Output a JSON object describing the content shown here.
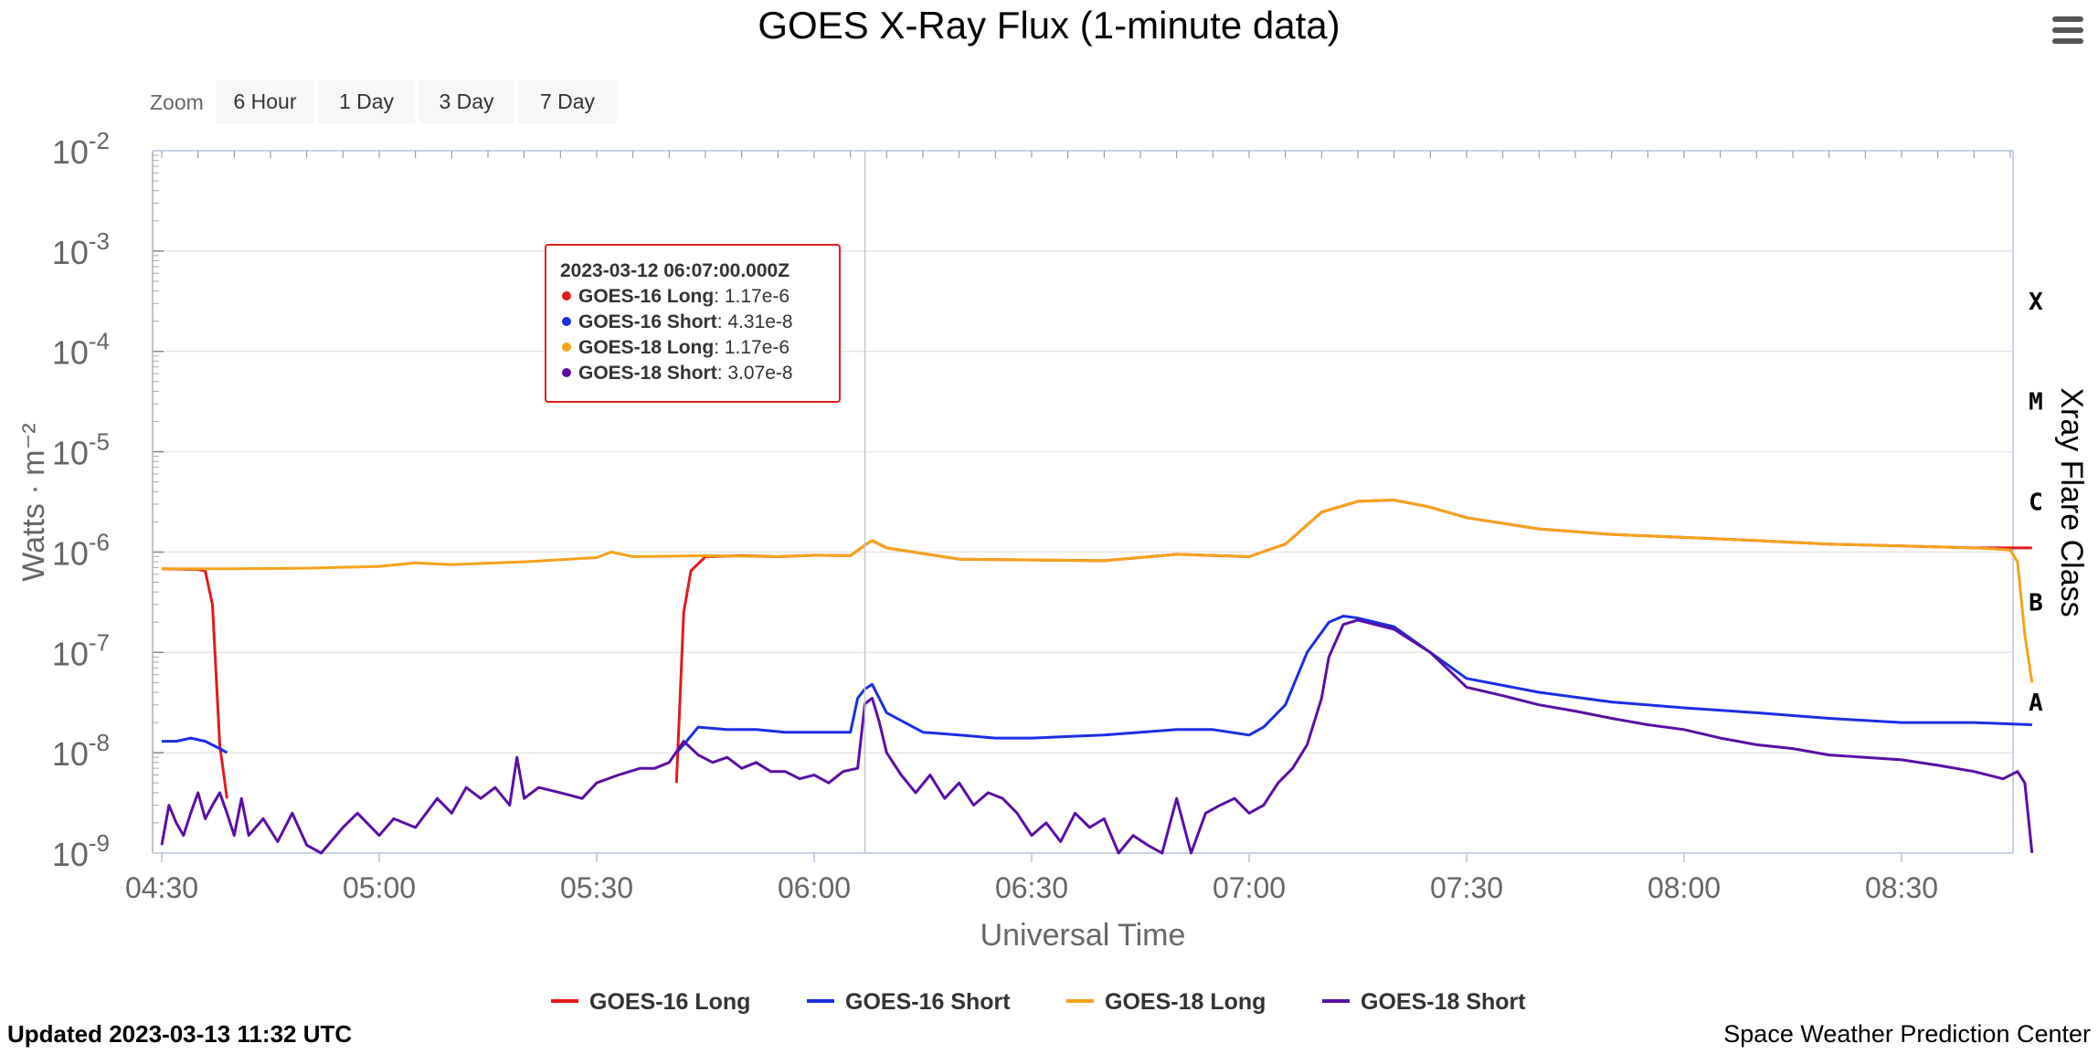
{
  "title": "GOES X-Ray Flux (1-minute data)",
  "zoom": {
    "label": "Zoom",
    "buttons": [
      "6 Hour",
      "1 Day",
      "3 Day",
      "7 Day"
    ]
  },
  "footer": {
    "updated": "Updated 2023-03-13 11:32 UTC",
    "credit": "Space Weather Prediction Center"
  },
  "icons": {
    "menu": "hamburger-menu-icon"
  },
  "tooltip": {
    "time": "2023-03-12 06:07:00.000Z",
    "rows": [
      {
        "name": "GOES-16 Long",
        "value": "1.17e-6"
      },
      {
        "name": "GOES-16 Short",
        "value": "4.31e-8"
      },
      {
        "name": "GOES-18 Long",
        "value": "1.17e-6"
      },
      {
        "name": "GOES-18 Short",
        "value": "3.07e-8"
      }
    ]
  },
  "chart_data": {
    "type": "line",
    "title": "GOES X-Ray Flux (1-minute data)",
    "xlabel": "Universal Time",
    "ylabel": "Watts · m⁻²",
    "y2label": "Xray Flare Class",
    "yscale": "log",
    "ylim": [
      1e-09,
      0.01
    ],
    "xlim": [
      "04:30",
      "08:48"
    ],
    "x_ticks": [
      "04:30",
      "05:00",
      "05:30",
      "06:00",
      "06:30",
      "07:00",
      "07:30",
      "08:00",
      "08:30"
    ],
    "y_ticks": [
      {
        "base": "10",
        "exp": "-2"
      },
      {
        "base": "10",
        "exp": "-3"
      },
      {
        "base": "10",
        "exp": "-4"
      },
      {
        "base": "10",
        "exp": "-5"
      },
      {
        "base": "10",
        "exp": "-6"
      },
      {
        "base": "10",
        "exp": "-7"
      },
      {
        "base": "10",
        "exp": "-8"
      },
      {
        "base": "10",
        "exp": "-9"
      }
    ],
    "flare_classes": [
      {
        "label": "X",
        "flux": 0.0001
      },
      {
        "label": "M",
        "flux": 1e-05
      },
      {
        "label": "C",
        "flux": 1e-06
      },
      {
        "label": "B",
        "flux": 1e-07
      },
      {
        "label": "A",
        "flux": 1e-08
      }
    ],
    "crosshair_time": "06:07",
    "grid": true,
    "legend": "bottom",
    "series": [
      {
        "name": "GOES-16 Long",
        "color": "#e31a1c",
        "points": [
          [
            "04:30",
            6.8e-07
          ],
          [
            "04:35",
            6.7e-07
          ],
          [
            "04:36",
            6.5e-07
          ],
          [
            "04:37",
            3e-07
          ],
          [
            "04:38",
            1.2e-08
          ],
          [
            "04:39",
            3.5e-09
          ],
          null,
          [
            "05:41",
            5e-09
          ],
          [
            "05:42",
            2.5e-07
          ],
          [
            "05:43",
            6.5e-07
          ],
          [
            "05:45",
            9e-07
          ],
          [
            "05:50",
            9.2e-07
          ],
          [
            "05:55",
            9e-07
          ],
          [
            "06:00",
            9.3e-07
          ],
          [
            "06:05",
            9.2e-07
          ],
          [
            "06:07",
            1.17e-06
          ],
          [
            "06:08",
            1.3e-06
          ],
          [
            "06:10",
            1.1e-06
          ],
          [
            "06:20",
            8.5e-07
          ],
          [
            "06:40",
            8.2e-07
          ],
          [
            "06:50",
            9.5e-07
          ],
          [
            "07:00",
            9e-07
          ],
          [
            "07:05",
            1.2e-06
          ],
          [
            "07:10",
            2.5e-06
          ],
          [
            "07:15",
            3.2e-06
          ],
          [
            "07:20",
            3.3e-06
          ],
          [
            "07:25",
            2.8e-06
          ],
          [
            "07:30",
            2.2e-06
          ],
          [
            "07:40",
            1.7e-06
          ],
          [
            "07:50",
            1.5e-06
          ],
          [
            "08:00",
            1.4e-06
          ],
          [
            "08:10",
            1.3e-06
          ],
          [
            "08:20",
            1.2e-06
          ],
          [
            "08:30",
            1.15e-06
          ],
          [
            "08:40",
            1.1e-06
          ],
          [
            "08:48",
            1.1e-06
          ]
        ]
      },
      {
        "name": "GOES-16 Short",
        "color": "#1a2ee3",
        "points": [
          [
            "04:30",
            1.3e-08
          ],
          [
            "04:32",
            1.3e-08
          ],
          [
            "04:34",
            1.4e-08
          ],
          [
            "04:36",
            1.3e-08
          ],
          [
            "04:38",
            1.1e-08
          ],
          [
            "04:39",
            1e-08
          ],
          null,
          [
            "05:41",
            1e-08
          ],
          [
            "05:42",
            1.2e-08
          ],
          [
            "05:44",
            1.8e-08
          ],
          [
            "05:48",
            1.7e-08
          ],
          [
            "05:52",
            1.7e-08
          ],
          [
            "05:56",
            1.6e-08
          ],
          [
            "06:00",
            1.6e-08
          ],
          [
            "06:05",
            1.6e-08
          ],
          [
            "06:06",
            3.5e-08
          ],
          [
            "06:07",
            4.31e-08
          ],
          [
            "06:08",
            4.8e-08
          ],
          [
            "06:10",
            2.5e-08
          ],
          [
            "06:15",
            1.6e-08
          ],
          [
            "06:20",
            1.5e-08
          ],
          [
            "06:25",
            1.4e-08
          ],
          [
            "06:30",
            1.4e-08
          ],
          [
            "06:35",
            1.45e-08
          ],
          [
            "06:40",
            1.5e-08
          ],
          [
            "06:45",
            1.6e-08
          ],
          [
            "06:50",
            1.7e-08
          ],
          [
            "06:55",
            1.7e-08
          ],
          [
            "07:00",
            1.5e-08
          ],
          [
            "07:02",
            1.8e-08
          ],
          [
            "07:05",
            3e-08
          ],
          [
            "07:08",
            1e-07
          ],
          [
            "07:11",
            2e-07
          ],
          [
            "07:13",
            2.3e-07
          ],
          [
            "07:15",
            2.2e-07
          ],
          [
            "07:20",
            1.8e-07
          ],
          [
            "07:25",
            1e-07
          ],
          [
            "07:30",
            5.5e-08
          ],
          [
            "07:40",
            4e-08
          ],
          [
            "07:50",
            3.2e-08
          ],
          [
            "08:00",
            2.8e-08
          ],
          [
            "08:10",
            2.5e-08
          ],
          [
            "08:20",
            2.2e-08
          ],
          [
            "08:30",
            2e-08
          ],
          [
            "08:40",
            2e-08
          ],
          [
            "08:48",
            1.9e-08
          ]
        ]
      },
      {
        "name": "GOES-18 Long",
        "color": "#f5a31a",
        "points": [
          [
            "04:30",
            6.8e-07
          ],
          [
            "04:40",
            6.8e-07
          ],
          [
            "04:50",
            6.9e-07
          ],
          [
            "05:00",
            7.2e-07
          ],
          [
            "05:05",
            7.8e-07
          ],
          [
            "05:10",
            7.5e-07
          ],
          [
            "05:20",
            8e-07
          ],
          [
            "05:30",
            8.8e-07
          ],
          [
            "05:32",
            1e-06
          ],
          [
            "05:35",
            9e-07
          ],
          [
            "05:45",
            9.2e-07
          ],
          [
            "05:55",
            9e-07
          ],
          [
            "06:00",
            9.3e-07
          ],
          [
            "06:05",
            9.2e-07
          ],
          [
            "06:07",
            1.17e-06
          ],
          [
            "06:08",
            1.3e-06
          ],
          [
            "06:10",
            1.1e-06
          ],
          [
            "06:20",
            8.5e-07
          ],
          [
            "06:40",
            8.2e-07
          ],
          [
            "06:50",
            9.5e-07
          ],
          [
            "07:00",
            9e-07
          ],
          [
            "07:05",
            1.2e-06
          ],
          [
            "07:10",
            2.5e-06
          ],
          [
            "07:15",
            3.2e-06
          ],
          [
            "07:20",
            3.3e-06
          ],
          [
            "07:25",
            2.8e-06
          ],
          [
            "07:30",
            2.2e-06
          ],
          [
            "07:40",
            1.7e-06
          ],
          [
            "07:50",
            1.5e-06
          ],
          [
            "08:00",
            1.4e-06
          ],
          [
            "08:10",
            1.3e-06
          ],
          [
            "08:20",
            1.2e-06
          ],
          [
            "08:30",
            1.15e-06
          ],
          [
            "08:40",
            1.1e-06
          ],
          [
            "08:45",
            1.05e-06
          ],
          [
            "08:46",
            8e-07
          ],
          [
            "08:47",
            1.5e-07
          ],
          [
            "08:48",
            5e-08
          ]
        ]
      },
      {
        "name": "GOES-18 Short",
        "color": "#5a0fa5",
        "points": [
          [
            "04:30",
            1.2e-09
          ],
          [
            "04:31",
            3e-09
          ],
          [
            "04:32",
            2e-09
          ],
          [
            "04:33",
            1.5e-09
          ],
          [
            "04:34",
            2.5e-09
          ],
          [
            "04:35",
            4e-09
          ],
          [
            "04:36",
            2.2e-09
          ],
          [
            "04:37",
            3e-09
          ],
          [
            "04:38",
            4e-09
          ],
          [
            "04:39",
            2.5e-09
          ],
          [
            "04:40",
            1.5e-09
          ],
          [
            "04:41",
            3.5e-09
          ],
          [
            "04:42",
            1.5e-09
          ],
          [
            "04:44",
            2.2e-09
          ],
          [
            "04:46",
            1.3e-09
          ],
          [
            "04:48",
            2.5e-09
          ],
          [
            "04:50",
            1.2e-09
          ],
          [
            "04:52",
            1e-09
          ],
          [
            "04:55",
            1.8e-09
          ],
          [
            "04:57",
            2.5e-09
          ],
          [
            "05:00",
            1.5e-09
          ],
          [
            "05:02",
            2.2e-09
          ],
          [
            "05:05",
            1.8e-09
          ],
          [
            "05:08",
            3.5e-09
          ],
          [
            "05:10",
            2.5e-09
          ],
          [
            "05:12",
            4.5e-09
          ],
          [
            "05:14",
            3.5e-09
          ],
          [
            "05:16",
            4.5e-09
          ],
          [
            "05:18",
            3e-09
          ],
          [
            "05:19",
            9e-09
          ],
          [
            "05:20",
            3.5e-09
          ],
          [
            "05:22",
            4.5e-09
          ],
          [
            "05:25",
            4e-09
          ],
          [
            "05:28",
            3.5e-09
          ],
          [
            "05:30",
            5e-09
          ],
          [
            "05:33",
            6e-09
          ],
          [
            "05:36",
            7e-09
          ],
          [
            "05:38",
            7e-09
          ],
          [
            "05:40",
            8e-09
          ],
          [
            "05:42",
            1.3e-08
          ],
          [
            "05:44",
            9.5e-09
          ],
          [
            "05:46",
            8e-09
          ],
          [
            "05:48",
            9e-09
          ],
          [
            "05:50",
            7e-09
          ],
          [
            "05:52",
            8e-09
          ],
          [
            "05:54",
            6.5e-09
          ],
          [
            "05:56",
            6.5e-09
          ],
          [
            "05:58",
            5.5e-09
          ],
          [
            "06:00",
            6e-09
          ],
          [
            "06:02",
            5e-09
          ],
          [
            "06:04",
            6.5e-09
          ],
          [
            "06:06",
            7e-09
          ],
          [
            "06:07",
            3.07e-08
          ],
          [
            "06:08",
            3.5e-08
          ],
          [
            "06:09",
            2e-08
          ],
          [
            "06:10",
            1e-08
          ],
          [
            "06:12",
            6e-09
          ],
          [
            "06:14",
            4e-09
          ],
          [
            "06:16",
            6e-09
          ],
          [
            "06:18",
            3.5e-09
          ],
          [
            "06:20",
            5e-09
          ],
          [
            "06:22",
            3e-09
          ],
          [
            "06:24",
            4e-09
          ],
          [
            "06:26",
            3.5e-09
          ],
          [
            "06:28",
            2.5e-09
          ],
          [
            "06:30",
            1.5e-09
          ],
          [
            "06:32",
            2e-09
          ],
          [
            "06:34",
            1.3e-09
          ],
          [
            "06:36",
            2.5e-09
          ],
          [
            "06:38",
            1.8e-09
          ],
          [
            "06:40",
            2.2e-09
          ],
          [
            "06:42",
            1e-09
          ],
          [
            "06:44",
            1.5e-09
          ],
          [
            "06:46",
            1.2e-09
          ],
          [
            "06:48",
            1e-09
          ],
          [
            "06:50",
            3.5e-09
          ],
          [
            "06:52",
            1e-09
          ],
          [
            "06:54",
            2.5e-09
          ],
          [
            "06:56",
            3e-09
          ],
          [
            "06:58",
            3.5e-09
          ],
          [
            "07:00",
            2.5e-09
          ],
          [
            "07:02",
            3e-09
          ],
          [
            "07:04",
            5e-09
          ],
          [
            "07:06",
            7e-09
          ],
          [
            "07:08",
            1.2e-08
          ],
          [
            "07:10",
            3.5e-08
          ],
          [
            "07:11",
            9e-08
          ],
          [
            "07:13",
            1.9e-07
          ],
          [
            "07:15",
            2.1e-07
          ],
          [
            "07:20",
            1.7e-07
          ],
          [
            "07:25",
            1e-07
          ],
          [
            "07:30",
            4.5e-08
          ],
          [
            "07:35",
            3.7e-08
          ],
          [
            "07:40",
            3e-08
          ],
          [
            "07:45",
            2.6e-08
          ],
          [
            "07:50",
            2.2e-08
          ],
          [
            "07:55",
            1.9e-08
          ],
          [
            "08:00",
            1.7e-08
          ],
          [
            "08:05",
            1.4e-08
          ],
          [
            "08:10",
            1.2e-08
          ],
          [
            "08:15",
            1.1e-08
          ],
          [
            "08:20",
            9.5e-09
          ],
          [
            "08:25",
            9e-09
          ],
          [
            "08:30",
            8.5e-09
          ],
          [
            "08:35",
            7.5e-09
          ],
          [
            "08:40",
            6.5e-09
          ],
          [
            "08:44",
            5.5e-09
          ],
          [
            "08:46",
            6.5e-09
          ],
          [
            "08:47",
            5e-09
          ],
          [
            "08:48",
            1e-09
          ]
        ]
      }
    ]
  }
}
